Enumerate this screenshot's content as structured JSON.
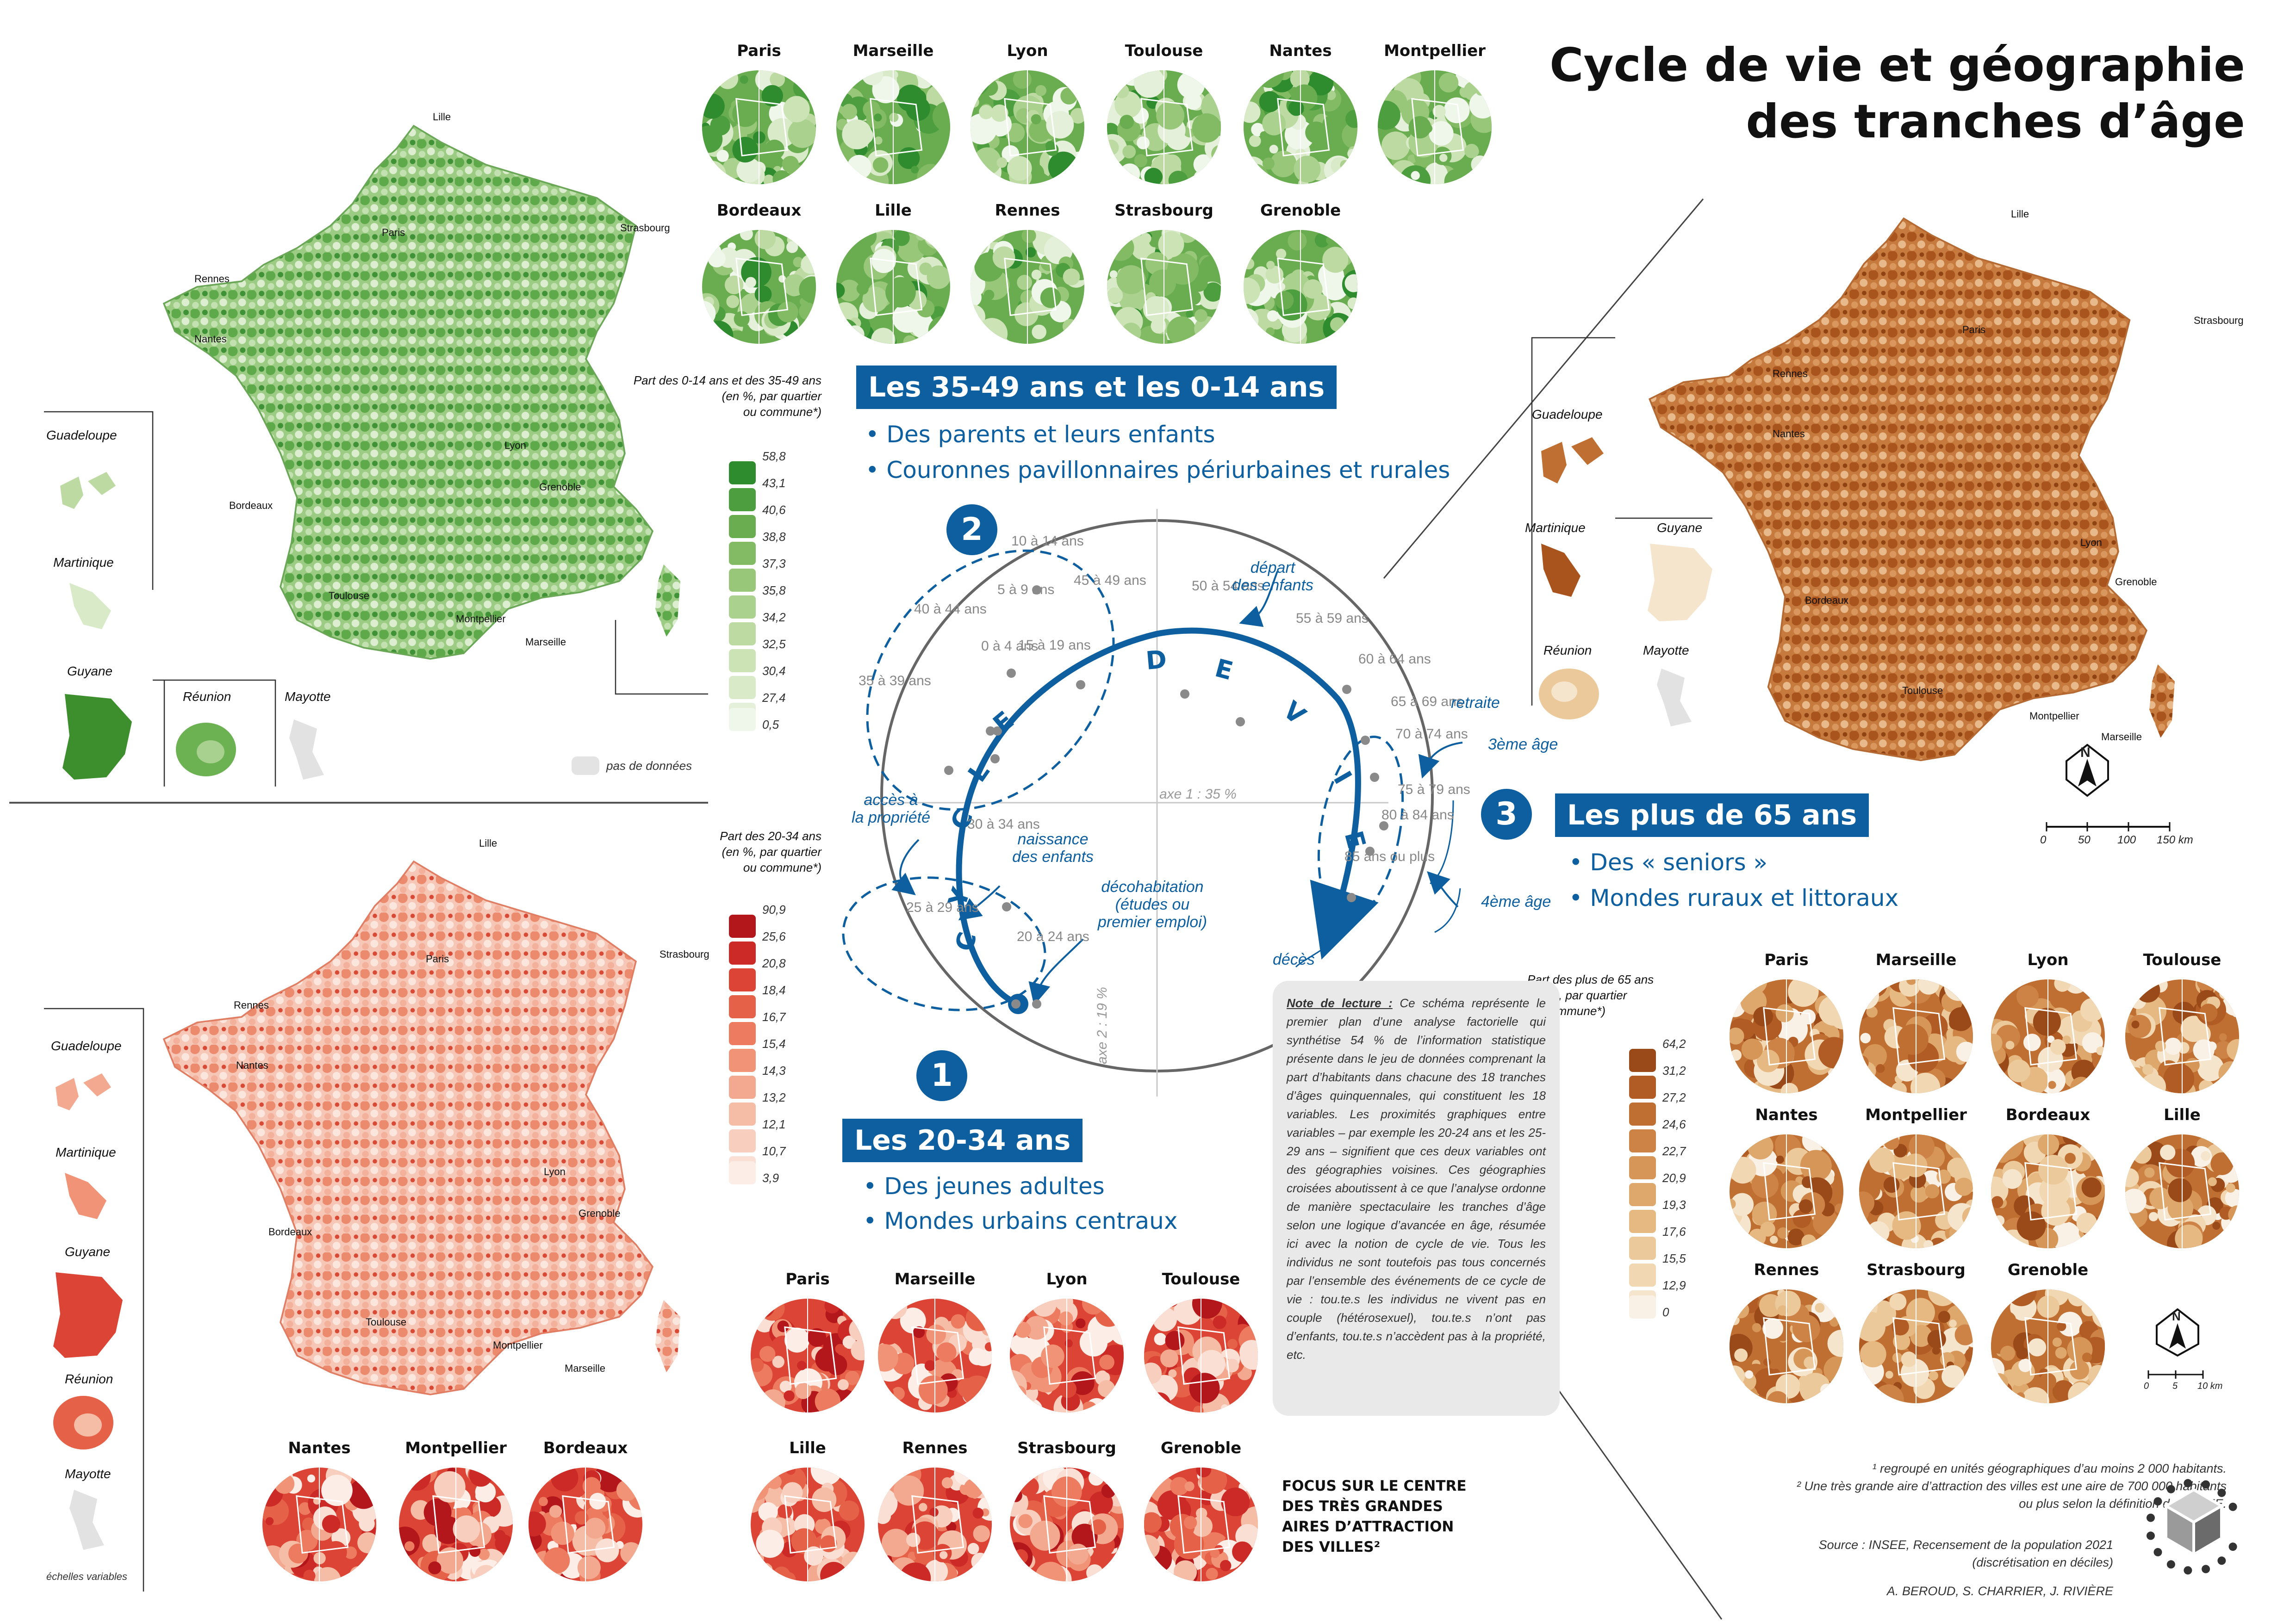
{
  "title": {
    "line1": "Cycle de vie et géographie",
    "line2": "des tranches d’âge"
  },
  "map_labels": {
    "lille": "Lille",
    "paris": "Paris",
    "strasbourg": "Strasbourg",
    "rennes": "Rennes",
    "nantes": "Nantes",
    "lyon": "Lyon",
    "grenoble": "Grenoble",
    "bordeaux": "Bordeaux",
    "toulouse": "Toulouse",
    "montpellier": "Montpellier",
    "marseille": "Marseille"
  },
  "dom": {
    "guadeloupe": "Guadeloupe",
    "martinique": "Martinique",
    "guyane": "Guyane",
    "reunion": "Réunion",
    "mayotte": "Mayotte"
  },
  "green_cities": [
    "Paris",
    "Marseille",
    "Lyon",
    "Toulouse",
    "Nantes",
    "Montpellier",
    "Bordeaux",
    "Lille",
    "Rennes",
    "Strasbourg",
    "Grenoble"
  ],
  "red_cities": [
    "Paris",
    "Marseille",
    "Lyon",
    "Toulouse",
    "Lille",
    "Rennes",
    "Strasbourg",
    "Grenoble",
    "Nantes",
    "Montpellier",
    "Bordeaux"
  ],
  "brown_cities": [
    "Paris",
    "Marseille",
    "Lyon",
    "Toulouse",
    "Nantes",
    "Montpellier",
    "Bordeaux",
    "Lille",
    "Rennes",
    "Strasbourg",
    "Grenoble"
  ],
  "legend_green": {
    "title": [
      "Part des 0-14 ans et des 35-49 ans",
      "(en %, par quartier",
      "ou commune*)"
    ],
    "values": [
      "58,8",
      "43,1",
      "40,6",
      "38,8",
      "37,3",
      "35,8",
      "34,2",
      "32,5",
      "30,4",
      "27,4",
      "0,5"
    ],
    "colors": [
      "#2e8b2e",
      "#4c9e3e",
      "#69ad50",
      "#82bb64",
      "#98c77a",
      "#abd18e",
      "#bcdaa2",
      "#cbe3b5",
      "#d8eac7",
      "#e4f0d9",
      "#eff6ea"
    ],
    "nodata": "pas de données"
  },
  "legend_red": {
    "title": [
      "Part des 20-34 ans",
      "(en %, par quartier",
      "ou commune*)"
    ],
    "values": [
      "90,9",
      "25,6",
      "20,8",
      "18,4",
      "16,7",
      "15,4",
      "14,3",
      "13,2",
      "12,1",
      "10,7",
      "3,9"
    ],
    "colors": [
      "#b3171c",
      "#cc2a26",
      "#dc4535",
      "#e56148",
      "#ec7b5f",
      "#f09377",
      "#f3a98f",
      "#f6bda6",
      "#f8cfbe",
      "#fadfd4",
      "#fcede7"
    ]
  },
  "legend_brown": {
    "title": [
      "Part des plus de 65 ans",
      "(en %, par quartier",
      "ou commune*)"
    ],
    "values": [
      "64,2",
      "31,2",
      "27,2",
      "24,6",
      "22,7",
      "20,9",
      "19,3",
      "17,6",
      "15,5",
      "12,9",
      "0"
    ],
    "colors": [
      "#9a4a18",
      "#b05c24",
      "#c06f33",
      "#cc8345",
      "#d69658",
      "#dea86d",
      "#e6b983",
      "#ecc99a",
      "#f1d7b2",
      "#f6e5cd",
      "#faf1e6"
    ]
  },
  "scale_map": {
    "labels": [
      "0",
      "50",
      "100",
      "150 km"
    ],
    "north": "N"
  },
  "scale_zoom": {
    "labels": [
      "0",
      "5",
      "10 km"
    ],
    "north": "N"
  },
  "group1": {
    "num": "1",
    "title": "Les 20-34 ans",
    "b1": "• Des jeunes adultes",
    "b2": "• Mondes urbains centraux"
  },
  "group2": {
    "num": "2",
    "title": "Les 35-49 ans et les 0-14 ans",
    "b1": "• Des parents et leurs enfants",
    "b2": "• Couronnes pavillonnaires périurbaines et rurales"
  },
  "group3": {
    "num": "3",
    "title": "Les plus de 65 ans",
    "b1": "• Des « seniors »",
    "b2": "• Mondes ruraux et littoraux"
  },
  "ages": [
    "0 à 4 ans",
    "5 à 9 ans",
    "10 à 14 ans",
    "15 à 19 ans",
    "20 à 24 ans",
    "25 à 29 ans",
    "30 à 34 ans",
    "35 à 39 ans",
    "40 à 44 ans",
    "45 à 49 ans",
    "50 à 54 ans",
    "55 à 59 ans",
    "60 à 64 ans",
    "65 à 69 ans",
    "70 à 74 ans",
    "75 à 79 ans",
    "80 à 84 ans",
    "85 ans ou plus"
  ],
  "axes": {
    "axe1": "axe 1 : 35 %",
    "axe2": "axe 2 : 19 %"
  },
  "cycle_letters": [
    "C",
    "Y",
    "C",
    "L",
    "E",
    "D",
    "E",
    "V",
    "I",
    "E"
  ],
  "events": {
    "depart": [
      "départ",
      "des enfants"
    ],
    "retraite": "retraite",
    "age3": "3ème âge",
    "age4": "4ème âge",
    "deces": "décès",
    "acces": [
      "accès à",
      "la propriété"
    ],
    "naissance": [
      "naissance",
      "des enfants"
    ],
    "decohab": [
      "décohabitation",
      "(études ou",
      "premier emploi)"
    ]
  },
  "note": {
    "heading": "Note de lecture :",
    "text": " Ce schéma représente le premier plan d’une analyse factorielle qui synthétise 54 % de l’information statistique présente dans le jeu de données comprenant la part d’habitants dans chacune des 18 tranches d’âges quinquennales, qui constituent les 18 variables. Les proximités graphiques entre variables – par exemple les 20-24 ans et les 25-29 ans – signifient que ces deux variables ont des géographies voisines. Ces géographies croisées aboutissent à ce que l’analyse ordonne de manière spectaculaire les tranches d’âge selon une logique d’avancée en âge, résumée ici avec la notion de cycle de vie. Tous les individus ne sont toutefois pas tous concernés par l’ensemble des événements de ce cycle de vie : tou.te.s les individus ne vivent pas en couple (hétérosexuel), tou.te.s n’ont pas d’enfants, tou.te.s n’accèdent pas à la propriété, etc."
  },
  "focus": [
    "FOCUS SUR LE CENTRE",
    "DES TRÈS GRANDES",
    "AIRES D’ATTRACTION",
    "DES VILLES²"
  ],
  "echelles": "échelles variables",
  "footnotes": {
    "f1": "¹ regroupé en unités géographiques d’au moins 2 000 habitants.",
    "f2a": "² Une très grande aire d’attraction des villes est une aire de 700 000 habitants",
    "f2b": "ou plus selon la définition de l’INSEE.",
    "source1": "Source : INSEE, Recensement de la population 2021",
    "source2": "(discrétisation en déciles)",
    "authors": "A. BEROUD, S. CHARRIER, J. RIVIÈRE"
  }
}
